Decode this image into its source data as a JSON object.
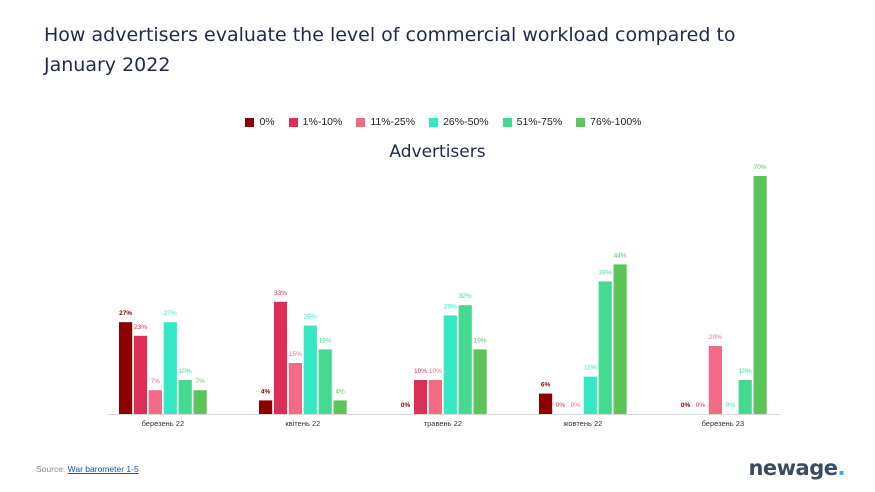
{
  "title_lines": [
    "How advertisers evaluate the level of commercial workload compared to",
    "January 2022"
  ],
  "source": {
    "prefix": "Source: ",
    "link_text": "War barometer 1-5"
  },
  "logo": {
    "text": "newage",
    "dot": "."
  },
  "colors": {
    "0%": "#8b0000",
    "1%-10%": "#dc2f55",
    "11%-25%": "#f26b84",
    "26%-50%": "#35e8c3",
    "51%-75%": "#44d98e",
    "76%-100%": "#5cc55a"
  },
  "chart_data": {
    "type": "bar",
    "title": "Advertisers",
    "categories": [
      "березень 22",
      "квітень 22",
      "травень 22",
      "жовтень 22",
      "березень 23"
    ],
    "series": [
      {
        "name": "0%",
        "values": [
          27,
          4,
          0,
          6,
          0
        ]
      },
      {
        "name": "1%-10%",
        "values": [
          23,
          33,
          10,
          0,
          0
        ]
      },
      {
        "name": "11%-25%",
        "values": [
          7,
          15,
          10,
          0,
          20
        ]
      },
      {
        "name": "26%-50%",
        "values": [
          27,
          26,
          29,
          11,
          0
        ]
      },
      {
        "name": "51%-75%",
        "values": [
          10,
          19,
          32,
          39,
          10
        ]
      },
      {
        "name": "76%-100%",
        "values": [
          7,
          4,
          19,
          44,
          70
        ]
      }
    ],
    "ylim": [
      0,
      70
    ],
    "grid": false,
    "legend_position": "top"
  }
}
